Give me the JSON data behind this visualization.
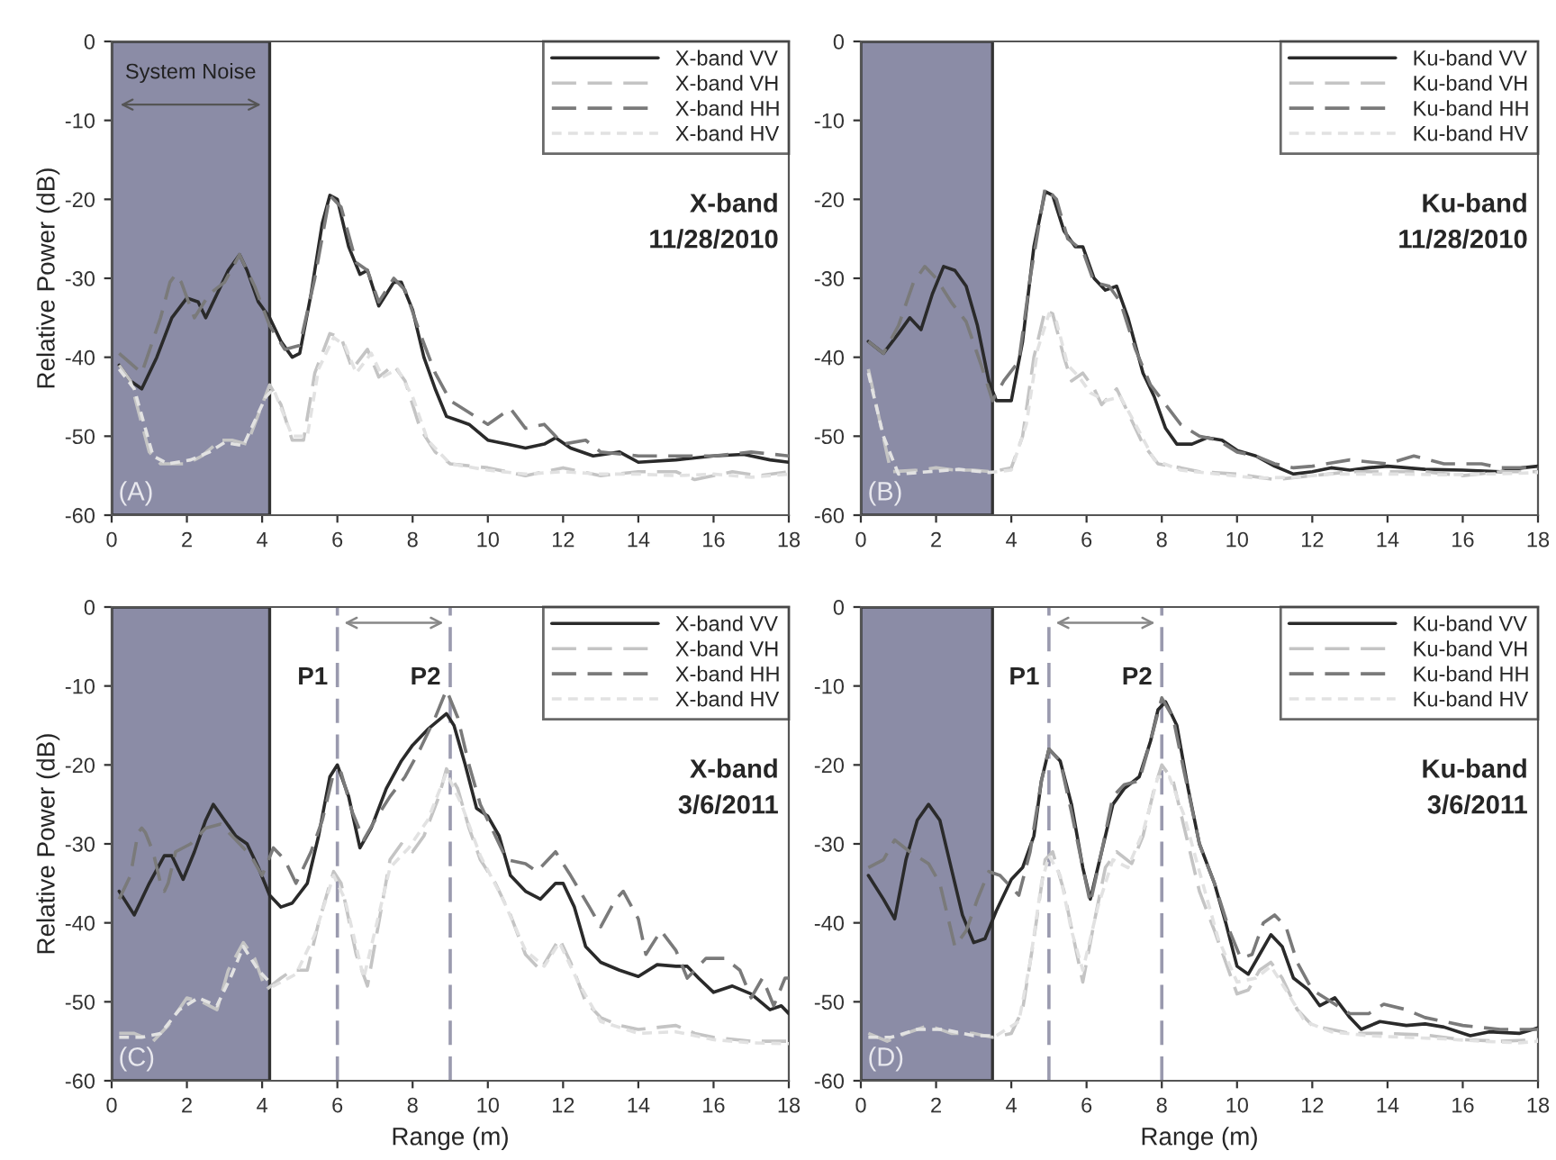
{
  "chart_data": [
    {
      "type": "line",
      "ylabel": "Relative Power (dB)",
      "xlim": [
        0,
        18
      ],
      "ylim": [
        -60,
        0
      ],
      "xticks": [
        0,
        2,
        4,
        6,
        8,
        10,
        12,
        14,
        16,
        18
      ],
      "yticks": [
        -60,
        -50,
        -40,
        -30,
        -20,
        -10,
        0
      ],
      "legend": "top right",
      "bands": [
        {
          "axis": "x",
          "from": 0,
          "to": 4.2,
          "label": "System Noise",
          "color": "#8b8ca6"
        }
      ],
      "annotations": [
        "X-band\n11/28/2010",
        "(A)"
      ],
      "series": [
        {
          "name": "X-band VV",
          "color": "#2a2a2a",
          "line_style": "solid",
          "x": [
            0.2,
            0.5,
            0.8,
            1.2,
            1.6,
            2.0,
            2.3,
            2.5,
            2.8,
            3.1,
            3.4,
            3.6,
            3.9,
            4.2,
            4.5,
            4.8,
            5.0,
            5.3,
            5.6,
            5.8,
            6.0,
            6.3,
            6.6,
            6.8,
            7.1,
            7.5,
            7.7,
            8.0,
            8.3,
            8.6,
            8.9,
            9.2,
            9.5,
            10.0,
            10.5,
            11.0,
            11.5,
            11.8,
            12.2,
            12.8,
            13.5,
            14.0,
            15.0,
            16.0,
            16.8,
            17.5,
            18.0
          ],
          "values": [
            -41,
            -43,
            -44,
            -40,
            -35,
            -32.5,
            -33,
            -35,
            -32,
            -29,
            -27,
            -29,
            -33,
            -35,
            -38,
            -40,
            -39.5,
            -32,
            -23,
            -19.5,
            -20,
            -26,
            -29.5,
            -29,
            -33.5,
            -30.5,
            -30.5,
            -34,
            -40,
            -44,
            -47.5,
            -48,
            -48.5,
            -50.5,
            -51,
            -51.5,
            -51,
            -50.2,
            -51.5,
            -52.5,
            -52,
            -53.3,
            -53,
            -52.5,
            -52.3,
            -53,
            -53.3
          ]
        },
        {
          "name": "X-band VH",
          "color": "#c4c4c4",
          "line_style": "dashed",
          "x": [
            0.2,
            0.5,
            1.0,
            1.3,
            2.0,
            2.4,
            2.9,
            3.2,
            3.6,
            4.0,
            4.2,
            4.5,
            4.8,
            5.1,
            5.4,
            5.8,
            6.1,
            6.4,
            6.8,
            7.1,
            7.5,
            7.8,
            8.2,
            8.6,
            9.0,
            10.0,
            11.0,
            12.0,
            13.0,
            14.0,
            15.0,
            15.5,
            16.5,
            17.2,
            18.0
          ],
          "values": [
            -41,
            -43,
            -52,
            -53.5,
            -53.5,
            -52.5,
            -50.5,
            -50.5,
            -51,
            -46,
            -43.5,
            -46,
            -50.5,
            -50.5,
            -42,
            -37,
            -37.5,
            -41.5,
            -39,
            -42.5,
            -41,
            -43,
            -49,
            -52,
            -53.5,
            -54,
            -55,
            -54,
            -55,
            -54.5,
            -54.5,
            -55.5,
            -54.5,
            -55,
            -54.5
          ]
        },
        {
          "name": "X-band HH",
          "color": "#7a7a7a",
          "line_style": "dashed",
          "x": [
            0.2,
            0.8,
            1.3,
            1.55,
            1.7,
            1.85,
            2.2,
            2.6,
            3.0,
            3.4,
            3.8,
            4.2,
            4.6,
            5.0,
            5.4,
            5.8,
            6.1,
            6.5,
            6.8,
            7.1,
            7.5,
            7.8,
            8.2,
            8.6,
            9.0,
            9.5,
            10.0,
            10.6,
            11.0,
            11.5,
            12.0,
            12.6,
            13.0,
            14.0,
            15.0,
            16.0,
            17.0,
            18.0
          ],
          "values": [
            -39.5,
            -42,
            -35,
            -30.5,
            -29.5,
            -30.5,
            -35,
            -32,
            -30.5,
            -27,
            -31,
            -36,
            -39,
            -38.5,
            -30,
            -19.5,
            -21,
            -28,
            -29,
            -33,
            -30,
            -31.5,
            -37,
            -42,
            -45.5,
            -47,
            -48.5,
            -46.5,
            -49,
            -48.5,
            -51,
            -50.5,
            -52,
            -52.5,
            -52.5,
            -52.5,
            -52,
            -52.5
          ]
        },
        {
          "name": "X-band HV",
          "color": "#e2e2e2",
          "line_style": "dotted",
          "x": [
            0.2,
            0.6,
            1.1,
            1.5,
            2.1,
            2.6,
            3.0,
            3.5,
            4.1,
            4.3,
            4.8,
            5.2,
            5.5,
            5.9,
            6.2,
            6.5,
            6.9,
            7.2,
            7.6,
            8.0,
            8.4,
            9.0,
            10.0,
            11.0,
            12.0,
            13.0,
            14.0,
            15.0,
            16.0,
            17.0,
            18.0
          ],
          "values": [
            -41.5,
            -44,
            -52.5,
            -53.5,
            -53,
            -52,
            -50.8,
            -51.2,
            -45,
            -44,
            -50,
            -50,
            -41.5,
            -37.5,
            -38.5,
            -42,
            -39.5,
            -42.5,
            -41.5,
            -45,
            -50.5,
            -53.5,
            -54.3,
            -54.8,
            -54.5,
            -54.8,
            -54.8,
            -55,
            -54.8,
            -55.2,
            -54.8
          ]
        }
      ]
    },
    {
      "type": "line",
      "xlim": [
        0,
        18
      ],
      "ylim": [
        -60,
        0
      ],
      "xticks": [
        0,
        2,
        4,
        6,
        8,
        10,
        12,
        14,
        16,
        18
      ],
      "yticks": [
        -60,
        -50,
        -40,
        -30,
        -20,
        -10,
        0
      ],
      "legend": "top right",
      "bands": [
        {
          "axis": "x",
          "from": 0,
          "to": 3.5,
          "color": "#8b8ca6"
        }
      ],
      "annotations": [
        "Ku-band\n11/28/2010",
        "(B)"
      ],
      "series": [
        {
          "name": "Ku-band VV",
          "color": "#2a2a2a",
          "line_style": "solid",
          "x": [
            0.2,
            0.6,
            1.0,
            1.3,
            1.6,
            1.9,
            2.2,
            2.5,
            2.8,
            3.1,
            3.4,
            3.6,
            4.0,
            4.3,
            4.6,
            4.9,
            5.1,
            5.4,
            5.7,
            5.9,
            6.2,
            6.5,
            6.8,
            7.1,
            7.5,
            7.8,
            8.1,
            8.4,
            8.8,
            9.2,
            9.6,
            10.0,
            10.5,
            11.0,
            11.5,
            12.0,
            12.5,
            13.0,
            13.5,
            14.0,
            14.5,
            15.0,
            16.0,
            17.0,
            17.6,
            18.0
          ],
          "values": [
            -38,
            -39.5,
            -37,
            -35,
            -36.5,
            -32,
            -28.5,
            -29,
            -31,
            -36,
            -43,
            -45.5,
            -45.5,
            -38,
            -26,
            -19,
            -19.5,
            -24,
            -26,
            -26,
            -30,
            -31.5,
            -31,
            -35,
            -42,
            -45,
            -49,
            -51,
            -51,
            -50.2,
            -50.5,
            -51.8,
            -52.5,
            -53.8,
            -54.8,
            -54.5,
            -54,
            -54.3,
            -54,
            -53.8,
            -54,
            -54.2,
            -54.3,
            -54.5,
            -54,
            -53.8
          ]
        },
        {
          "name": "Ku-band VH",
          "color": "#c4c4c4",
          "line_style": "dashed",
          "x": [
            0.2,
            0.5,
            0.8,
            1.5,
            2.0,
            2.5,
            3.0,
            3.5,
            4.0,
            4.3,
            4.6,
            4.9,
            5.1,
            5.4,
            5.6,
            5.9,
            6.2,
            6.4,
            6.8,
            7.1,
            7.5,
            7.9,
            8.5,
            9.0,
            10.0,
            11.0,
            12.0,
            13.0,
            14.0,
            15.0,
            16.0,
            17.0,
            18.0
          ],
          "values": [
            -41.5,
            -48,
            -54.5,
            -54.3,
            -54,
            -54.3,
            -54.3,
            -54.5,
            -54,
            -50,
            -40,
            -34,
            -34.5,
            -40,
            -43,
            -42,
            -44,
            -46,
            -44,
            -47,
            -51,
            -53.5,
            -54,
            -54.5,
            -54.8,
            -55.5,
            -55,
            -54.5,
            -54.5,
            -54.5,
            -55,
            -54.5,
            -54.5
          ]
        },
        {
          "name": "Ku-band HH",
          "color": "#7a7a7a",
          "line_style": "dashed",
          "x": [
            0.2,
            0.6,
            1.0,
            1.4,
            1.7,
            2.0,
            2.4,
            2.8,
            3.2,
            3.5,
            3.8,
            4.2,
            4.5,
            4.9,
            5.2,
            5.5,
            5.9,
            6.2,
            6.6,
            6.9,
            7.3,
            7.7,
            8.1,
            8.5,
            9.0,
            9.5,
            10.0,
            10.5,
            11.0,
            11.5,
            12.0,
            13.0,
            14.0,
            14.7,
            15.5,
            16.5,
            17.0,
            18.0
          ],
          "values": [
            -38,
            -39.5,
            -36,
            -30.5,
            -28.5,
            -30,
            -33,
            -35.5,
            -41,
            -45.5,
            -43,
            -40.5,
            -30,
            -18.5,
            -20,
            -25,
            -26.5,
            -30.5,
            -31,
            -33,
            -39,
            -43.5,
            -46,
            -48.5,
            -50,
            -50.5,
            -52,
            -52.5,
            -53.5,
            -54,
            -53.8,
            -53,
            -53.5,
            -52.5,
            -53.5,
            -53.5,
            -54,
            -54
          ]
        },
        {
          "name": "Ku-band HV",
          "color": "#e2e2e2",
          "line_style": "dotted",
          "x": [
            0.2,
            0.6,
            1.0,
            1.8,
            2.6,
            3.4,
            4.0,
            4.4,
            4.7,
            5.0,
            5.2,
            5.5,
            5.8,
            6.1,
            6.5,
            6.9,
            7.3,
            7.8,
            8.5,
            9.5,
            10.5,
            11.5,
            12.5,
            13.5,
            14.5,
            15.5,
            16.5,
            17.5,
            18.0
          ],
          "values": [
            -42,
            -50,
            -54.8,
            -54.5,
            -54.2,
            -54.6,
            -54.3,
            -48.5,
            -39,
            -34.5,
            -35.5,
            -41,
            -42.5,
            -44.5,
            -45.5,
            -45,
            -48.5,
            -53,
            -54.3,
            -54.8,
            -55.3,
            -55.2,
            -54.8,
            -54.8,
            -54.8,
            -54.9,
            -54.8,
            -54.7,
            -54.6
          ]
        }
      ]
    },
    {
      "type": "line",
      "xlabel": "Range (m)",
      "ylabel": "Relative Power (dB)",
      "xlim": [
        0,
        18
      ],
      "ylim": [
        -60,
        0
      ],
      "xticks": [
        0,
        2,
        4,
        6,
        8,
        10,
        12,
        14,
        16,
        18
      ],
      "yticks": [
        -60,
        -50,
        -40,
        -30,
        -20,
        -10,
        0
      ],
      "legend": "top right",
      "bands": [
        {
          "axis": "x",
          "from": 0,
          "to": 4.2,
          "color": "#8b8ca6"
        }
      ],
      "ref_lines": [
        {
          "axis": "x",
          "value": 6,
          "label": "P1",
          "color": "#9a9aae",
          "line_style": "dashed"
        },
        {
          "axis": "x",
          "value": 9,
          "label": "P2",
          "color": "#9a9aae",
          "line_style": "dashed"
        }
      ],
      "annotations": [
        "X-band\n3/6/2011",
        "(C)"
      ],
      "series": [
        {
          "name": "X-band VV",
          "color": "#2a2a2a",
          "line_style": "solid",
          "x": [
            0.2,
            0.6,
            1.0,
            1.4,
            1.6,
            1.9,
            2.2,
            2.5,
            2.7,
            3.0,
            3.3,
            3.6,
            3.9,
            4.2,
            4.5,
            4.8,
            5.2,
            5.5,
            5.8,
            6.0,
            6.3,
            6.6,
            6.9,
            7.3,
            7.7,
            8.0,
            8.4,
            8.9,
            9.1,
            9.4,
            9.7,
            10.0,
            10.3,
            10.6,
            11.0,
            11.4,
            11.8,
            12.0,
            12.3,
            12.6,
            13.0,
            13.5,
            14.0,
            14.5,
            15.0,
            15.3,
            15.6,
            16.0,
            16.5,
            17.0,
            17.5,
            17.8,
            18.0
          ],
          "values": [
            -36,
            -39,
            -35,
            -31.5,
            -31.5,
            -34.5,
            -31,
            -27,
            -25,
            -27,
            -29,
            -30,
            -33,
            -36.5,
            -38,
            -37.5,
            -35,
            -29,
            -21.5,
            -20,
            -24,
            -30.5,
            -28,
            -23,
            -19.5,
            -17.5,
            -15.5,
            -13.5,
            -15,
            -20,
            -25.5,
            -26.5,
            -29,
            -34,
            -36,
            -37,
            -35,
            -35,
            -38,
            -43,
            -45,
            -46,
            -46.8,
            -45.3,
            -45.5,
            -45.5,
            -47,
            -48.8,
            -48,
            -49,
            -51,
            -50.5,
            -51.5
          ]
        },
        {
          "name": "X-band VH",
          "color": "#c4c4c4",
          "line_style": "dashed",
          "x": [
            0.2,
            0.6,
            1.1,
            1.5,
            2.0,
            2.4,
            2.8,
            3.1,
            3.5,
            3.8,
            4.1,
            4.5,
            4.8,
            5.2,
            5.5,
            5.9,
            6.1,
            6.5,
            6.8,
            7.1,
            7.4,
            7.7,
            8.0,
            8.3,
            8.7,
            8.9,
            9.2,
            9.5,
            9.8,
            10.2,
            10.6,
            11.0,
            11.4,
            11.9,
            12.2,
            12.6,
            13.0,
            13.5,
            14.0,
            15.0,
            15.5,
            16.0,
            17.0,
            18.0
          ],
          "values": [
            -54,
            -54,
            -55,
            -53,
            -49.5,
            -50,
            -51,
            -46,
            -42.5,
            -44.5,
            -48.5,
            -47,
            -46,
            -46,
            -40,
            -33.5,
            -35,
            -44,
            -48,
            -40,
            -32,
            -30,
            -31,
            -29,
            -24,
            -20.5,
            -23,
            -28,
            -32,
            -35,
            -39,
            -44,
            -46,
            -42,
            -45,
            -50,
            -52,
            -53,
            -53.5,
            -53,
            -54,
            -54.5,
            -55,
            -55
          ]
        },
        {
          "name": "X-band HH",
          "color": "#7a7a7a",
          "line_style": "dashed",
          "x": [
            0.2,
            0.5,
            0.7,
            0.8,
            0.9,
            1.1,
            1.3,
            1.4,
            1.5,
            1.7,
            2.1,
            2.5,
            2.9,
            3.3,
            3.7,
            4.0,
            4.3,
            4.6,
            4.9,
            5.3,
            5.6,
            5.9,
            6.1,
            6.4,
            6.7,
            7.0,
            7.4,
            7.8,
            8.2,
            8.6,
            8.9,
            9.2,
            9.5,
            9.8,
            10.1,
            10.5,
            11.0,
            11.3,
            11.8,
            12.2,
            12.7,
            13.0,
            13.4,
            13.6,
            14.0,
            14.2,
            14.6,
            15.0,
            15.3,
            15.8,
            16.3,
            16.7,
            17.0,
            17.3,
            17.6,
            17.9,
            18.0
          ],
          "values": [
            -37,
            -34,
            -28.6,
            -28,
            -28.6,
            -31,
            -35,
            -36,
            -35,
            -31,
            -30,
            -28,
            -27.5,
            -29.5,
            -31.5,
            -34,
            -30.5,
            -32,
            -35,
            -31,
            -27,
            -21,
            -21,
            -26,
            -29.5,
            -27,
            -24,
            -21.5,
            -18,
            -14,
            -10.5,
            -14,
            -20,
            -25,
            -28,
            -32,
            -32.5,
            -33.5,
            -31,
            -34,
            -38,
            -40.5,
            -37,
            -36,
            -39.5,
            -44,
            -41,
            -43.5,
            -47,
            -44.5,
            -44.5,
            -46,
            -49.5,
            -47,
            -50.5,
            -47,
            -47
          ]
        },
        {
          "name": "X-band HV",
          "color": "#e2e2e2",
          "line_style": "dotted",
          "x": [
            0.2,
            0.8,
            1.3,
            1.8,
            2.3,
            2.8,
            3.2,
            3.5,
            3.9,
            4.3,
            4.9,
            5.4,
            5.9,
            6.2,
            6.7,
            7.0,
            7.4,
            7.9,
            8.4,
            8.9,
            9.3,
            9.8,
            10.4,
            11.0,
            11.5,
            11.9,
            12.4,
            13.0,
            14.0,
            15.0,
            16.0,
            17.0,
            18.0
          ],
          "values": [
            -54.5,
            -54.5,
            -54,
            -51,
            -49.5,
            -50.5,
            -46.5,
            -43,
            -46,
            -48,
            -46.5,
            -41.5,
            -34,
            -37,
            -47,
            -41,
            -33,
            -30.5,
            -27,
            -21,
            -25,
            -31.5,
            -37,
            -43.5,
            -45.5,
            -42.5,
            -47.5,
            -52.5,
            -54,
            -53.8,
            -54.8,
            -55.2,
            -55.3
          ]
        }
      ]
    },
    {
      "type": "line",
      "xlabel": "Range (m)",
      "xlim": [
        0,
        18
      ],
      "ylim": [
        -60,
        0
      ],
      "xticks": [
        0,
        2,
        4,
        6,
        8,
        10,
        12,
        14,
        16,
        18
      ],
      "yticks": [
        -60,
        -50,
        -40,
        -30,
        -20,
        -10,
        0
      ],
      "legend": "top right",
      "bands": [
        {
          "axis": "x",
          "from": 0,
          "to": 3.5,
          "color": "#8b8ca6"
        }
      ],
      "ref_lines": [
        {
          "axis": "x",
          "value": 5,
          "label": "P1",
          "color": "#9a9aae",
          "line_style": "dashed"
        },
        {
          "axis": "x",
          "value": 8,
          "label": "P2",
          "color": "#9a9aae",
          "line_style": "dashed"
        }
      ],
      "annotations": [
        "Ku-band\n3/6/2011",
        "(D)"
      ],
      "series": [
        {
          "name": "Ku-band VV",
          "color": "#2a2a2a",
          "line_style": "solid",
          "x": [
            0.2,
            0.6,
            0.9,
            1.2,
            1.5,
            1.8,
            2.1,
            2.4,
            2.7,
            3.0,
            3.3,
            3.6,
            4.0,
            4.3,
            4.6,
            4.8,
            5.0,
            5.3,
            5.6,
            5.9,
            6.1,
            6.4,
            6.7,
            7.0,
            7.4,
            7.7,
            7.9,
            8.1,
            8.4,
            8.7,
            9.0,
            9.4,
            9.7,
            10.0,
            10.3,
            10.6,
            10.9,
            11.2,
            11.5,
            11.9,
            12.2,
            12.6,
            13.0,
            13.3,
            13.8,
            14.5,
            15.0,
            15.5,
            16.2,
            16.7,
            17.5,
            18.0
          ],
          "values": [
            -34,
            -37,
            -39.5,
            -32,
            -27,
            -25,
            -27,
            -33,
            -39,
            -42.5,
            -42,
            -38.5,
            -34.5,
            -33,
            -29,
            -22,
            -18,
            -19.5,
            -25,
            -33,
            -37,
            -31,
            -25,
            -23,
            -21.5,
            -17,
            -13,
            -12,
            -15,
            -23,
            -30,
            -35,
            -40,
            -45.5,
            -46.5,
            -44,
            -41.5,
            -43,
            -47,
            -48.5,
            -50.5,
            -49.5,
            -52,
            -53.5,
            -52.5,
            -53,
            -52.8,
            -53.2,
            -54.3,
            -53.8,
            -54,
            -53.3
          ]
        },
        {
          "name": "Ku-band VH",
          "color": "#c4c4c4",
          "line_style": "dashed",
          "x": [
            0.2,
            0.7,
            1.2,
            1.8,
            2.4,
            3.0,
            3.5,
            4.0,
            4.3,
            4.6,
            4.9,
            5.1,
            5.4,
            5.7,
            5.9,
            6.2,
            6.5,
            6.8,
            7.2,
            7.5,
            7.8,
            8.0,
            8.3,
            8.6,
            9.0,
            9.4,
            9.7,
            10.0,
            10.3,
            10.6,
            10.9,
            11.2,
            11.6,
            12.0,
            12.5,
            13.0,
            14.0,
            15.0,
            16.0,
            17.0,
            18.0
          ],
          "values": [
            -54,
            -55,
            -54,
            -53,
            -54,
            -54,
            -54.5,
            -54,
            -51,
            -42,
            -32,
            -31,
            -36,
            -43,
            -47.5,
            -40,
            -33,
            -31,
            -32.5,
            -29,
            -23,
            -20,
            -22,
            -28,
            -36,
            -41,
            -45,
            -49,
            -48.5,
            -46,
            -45,
            -47,
            -51,
            -53,
            -53.5,
            -54,
            -54,
            -54.2,
            -54.8,
            -55,
            -54.8
          ]
        },
        {
          "name": "Ku-band HH",
          "color": "#7a7a7a",
          "line_style": "dashed",
          "x": [
            0.2,
            0.6,
            0.9,
            1.3,
            1.8,
            2.1,
            2.5,
            2.8,
            3.1,
            3.4,
            3.7,
            4.0,
            4.2,
            4.5,
            4.8,
            5.0,
            5.3,
            5.6,
            5.9,
            6.1,
            6.4,
            6.7,
            7.0,
            7.4,
            7.7,
            8.0,
            8.3,
            8.6,
            9.0,
            9.4,
            9.8,
            10.1,
            10.4,
            10.7,
            11.0,
            11.3,
            11.6,
            12.0,
            12.5,
            13.0,
            13.5,
            13.9,
            14.5,
            15.0,
            16.0,
            17.0,
            18.0
          ],
          "values": [
            -33,
            -32,
            -29.5,
            -31,
            -32.5,
            -35,
            -43,
            -41,
            -37,
            -33.5,
            -34,
            -35.5,
            -36.5,
            -31,
            -22,
            -18,
            -19.5,
            -26,
            -33,
            -37.5,
            -31,
            -24,
            -22.5,
            -22,
            -17,
            -11.5,
            -14,
            -21,
            -30,
            -35,
            -41,
            -44.5,
            -44,
            -40,
            -39,
            -40.5,
            -45,
            -48.5,
            -50,
            -51.5,
            -51.5,
            -50.3,
            -51,
            -52,
            -53,
            -53.5,
            -53.5
          ]
        },
        {
          "name": "Ku-band HV",
          "color": "#e2e2e2",
          "line_style": "dotted",
          "x": [
            0.2,
            0.8,
            1.5,
            2.2,
            3.0,
            3.6,
            4.2,
            4.5,
            4.8,
            5.0,
            5.3,
            5.6,
            5.9,
            6.3,
            6.7,
            7.1,
            7.5,
            7.9,
            8.2,
            8.6,
            9.0,
            9.5,
            10.0,
            10.5,
            10.9,
            11.3,
            11.8,
            12.5,
            13.5,
            14.5,
            15.5,
            16.5,
            17.5,
            18.0
          ],
          "values": [
            -54.5,
            -54.5,
            -53.5,
            -53.5,
            -54.3,
            -54.3,
            -52.5,
            -45,
            -35,
            -31.5,
            -34,
            -41,
            -46,
            -38,
            -32,
            -33,
            -28.5,
            -21.5,
            -21.5,
            -26.5,
            -33.5,
            -42,
            -47.5,
            -47,
            -45.5,
            -48.5,
            -52.5,
            -53.8,
            -54.3,
            -54.5,
            -54.7,
            -55,
            -55.2,
            -55
          ]
        }
      ]
    }
  ]
}
